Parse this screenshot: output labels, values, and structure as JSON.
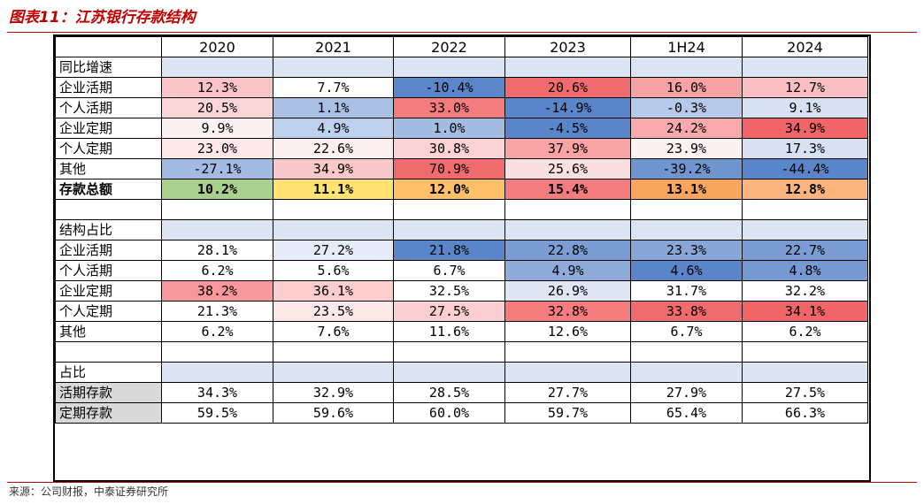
{
  "title": "图表11：江苏银行存款结构",
  "source": "来源：公司财报，中泰证券研究所",
  "columns": [
    "2020",
    "2021",
    "2022",
    "2023",
    "1H24",
    "2024"
  ],
  "sections": {
    "growth": {
      "label": "同比增速",
      "rows": [
        {
          "label": "企业活期",
          "values": [
            "12.3%",
            "7.7%",
            "-10.4%",
            "20.6%",
            "16.0%",
            "12.7%"
          ],
          "colors": [
            "#f9c4c7",
            "#ffffff",
            "#5b86c9",
            "#f06b6e",
            "#f7a2a4",
            "#f9bfc2"
          ]
        },
        {
          "label": "个人活期",
          "values": [
            "20.5%",
            "1.1%",
            "33.0%",
            "-14.9%",
            "-0.3%",
            "9.1%"
          ],
          "colors": [
            "#fbd6d8",
            "#a9bfe4",
            "#f47b7e",
            "#5a86c9",
            "#b6c9e8",
            "#d7e1f2"
          ]
        },
        {
          "label": "企业定期",
          "values": [
            "9.9%",
            "4.9%",
            "1.0%",
            "-4.5%",
            "24.2%",
            "34.9%"
          ],
          "colors": [
            "#fdf2f3",
            "#bfd0ec",
            "#a4bbe2",
            "#5a86c9",
            "#f7a9ac",
            "#f06567"
          ]
        },
        {
          "label": "个人定期",
          "values": [
            "23.0%",
            "22.6%",
            "30.8%",
            "37.9%",
            "23.9%",
            "17.3%"
          ],
          "colors": [
            "#fde7e8",
            "#fdf0f1",
            "#fbd3d5",
            "#f8a3a6",
            "#fdf1f2",
            "#d7e1f2"
          ]
        },
        {
          "label": "其他",
          "values": [
            "-27.1%",
            "34.9%",
            "70.9%",
            "25.6%",
            "-39.2%",
            "-44.4%"
          ],
          "colors": [
            "#a3bbe2",
            "#f9c8ca",
            "#f06b6e",
            "#fbe0e1",
            "#7195cf",
            "#5a86c9"
          ]
        },
        {
          "label": "存款总额",
          "values": [
            "10.2%",
            "11.1%",
            "12.0%",
            "15.4%",
            "13.1%",
            "12.8%"
          ],
          "colors": [
            "#a9d08e",
            "#ffe270",
            "#ffc06a",
            "#f47b7e",
            "#f9a55f",
            "#fbb47b"
          ],
          "bold": true
        }
      ]
    },
    "structure": {
      "label": "结构占比",
      "rows": [
        {
          "label": "企业活期",
          "values": [
            "28.1%",
            "27.2%",
            "21.8%",
            "22.8%",
            "23.3%",
            "22.7%"
          ],
          "colors": [
            "#ffffff",
            "#e6ecf7",
            "#5a86c9",
            "#7b9dd3",
            "#87a6d7",
            "#7a9cd2"
          ]
        },
        {
          "label": "个人活期",
          "values": [
            "6.2%",
            "5.6%",
            "6.7%",
            "4.9%",
            "4.6%",
            "4.8%"
          ],
          "colors": [
            "#ffffff",
            "#ffffff",
            "#ffffff",
            "#8eabd9",
            "#5a86c9",
            "#7799d1"
          ]
        },
        {
          "label": "企业定期",
          "values": [
            "38.2%",
            "36.1%",
            "32.5%",
            "26.9%",
            "31.7%",
            "32.2%"
          ],
          "colors": [
            "#f6989b",
            "#fbcdcf",
            "#ffffff",
            "#dfe7f4",
            "#ffffff",
            "#ffffff"
          ]
        },
        {
          "label": "个人定期",
          "values": [
            "21.3%",
            "23.5%",
            "27.5%",
            "32.8%",
            "33.8%",
            "34.1%"
          ],
          "colors": [
            "#ffffff",
            "#fde8e9",
            "#fbcfd1",
            "#f47b7e",
            "#f06b6e",
            "#f06567"
          ]
        },
        {
          "label": "其他",
          "values": [
            "6.2%",
            "7.6%",
            "11.6%",
            "12.6%",
            "6.7%",
            "6.2%"
          ],
          "colors": [
            "#ffffff",
            "#ffffff",
            "#ffffff",
            "#ffffff",
            "#ffffff",
            "#ffffff"
          ]
        }
      ]
    },
    "share": {
      "label": "占比",
      "rows": [
        {
          "label": "活期存款",
          "values": [
            "34.3%",
            "32.9%",
            "28.5%",
            "27.7%",
            "27.9%",
            "27.5%"
          ]
        },
        {
          "label": "定期存款",
          "values": [
            "59.5%",
            "59.6%",
            "60.0%",
            "59.7%",
            "65.4%",
            "66.3%"
          ]
        }
      ]
    }
  },
  "colors": {
    "accent": "#c00000",
    "section_header": "#dbe5f1",
    "share_label_bg": "#d9d9d9"
  }
}
